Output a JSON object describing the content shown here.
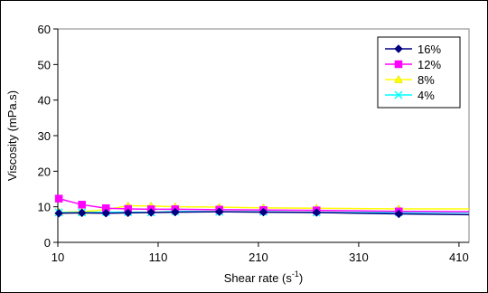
{
  "chart_data": {
    "type": "line",
    "title": "",
    "xlabel": "Shear rate (s",
    "xlabel_sup": "-1",
    "xlabel_tail": ")",
    "ylabel": "Viscosity (mPa.s)",
    "xlim": [
      10,
      420
    ],
    "ylim": [
      0,
      60
    ],
    "xticks": [
      10,
      110,
      210,
      310,
      410
    ],
    "yticks": [
      0,
      10,
      20,
      30,
      40,
      50,
      60
    ],
    "grid": false,
    "legend_position": "top-right",
    "series": [
      {
        "name": "16%",
        "color": "#000080",
        "marker": "diamond",
        "x": [
          11,
          34,
          58,
          80,
          103,
          127,
          171,
          215,
          268,
          350,
          420
        ],
        "y": [
          8.2,
          8.3,
          8.2,
          8.3,
          8.4,
          8.5,
          8.6,
          8.5,
          8.4,
          8.0,
          7.8
        ]
      },
      {
        "name": "12%",
        "color": "#FF00FF",
        "marker": "square",
        "x": [
          11,
          34,
          58,
          80,
          103,
          127,
          171,
          215,
          268,
          350,
          420
        ],
        "y": [
          12.3,
          10.6,
          9.6,
          9.4,
          9.3,
          9.3,
          9.2,
          9.1,
          9.0,
          8.7,
          8.6
        ]
      },
      {
        "name": "8%",
        "color": "#FFFF00",
        "marker": "triangle",
        "x": [
          11,
          34,
          58,
          80,
          103,
          127,
          171,
          215,
          268,
          350,
          420
        ],
        "y": [
          8.5,
          8.6,
          9.2,
          10.3,
          10.2,
          10.0,
          9.9,
          9.7,
          9.6,
          9.4,
          9.4
        ]
      },
      {
        "name": "4%",
        "color": "#00FFFF",
        "marker": "x",
        "x": [
          11,
          34,
          58,
          80,
          103,
          127,
          171,
          215,
          268,
          350,
          420
        ],
        "y": [
          8.4,
          8.4,
          8.5,
          8.5,
          8.4,
          8.7,
          8.6,
          8.6,
          8.4,
          8.4,
          8.4
        ]
      }
    ]
  }
}
